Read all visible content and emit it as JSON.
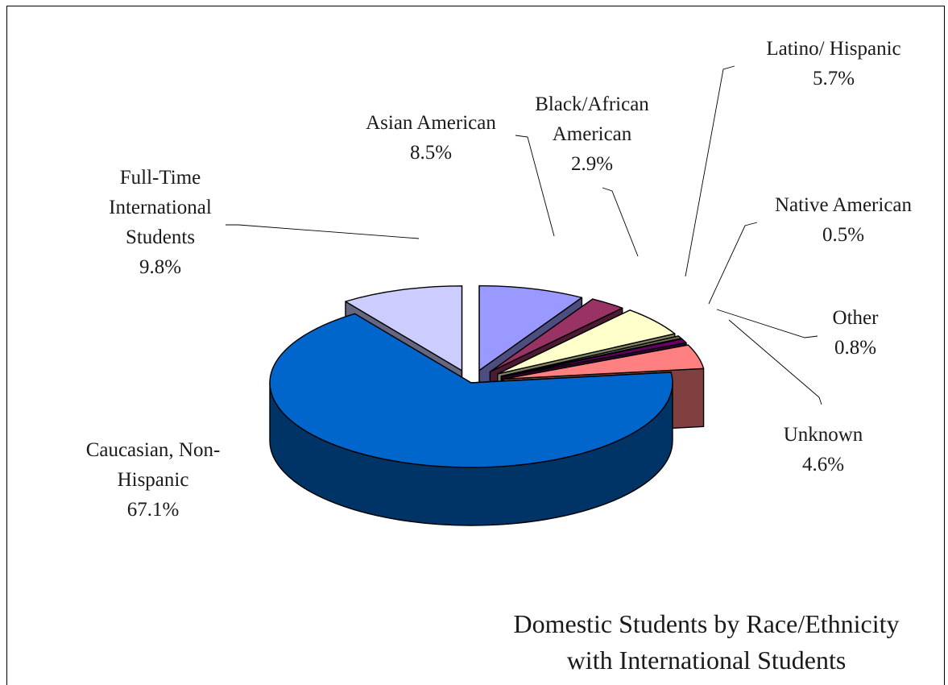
{
  "chart_data": {
    "type": "pie",
    "style": "3d-exploded",
    "title_lines": [
      "Domestic Students by Race/Ethnicity",
      "with International Students"
    ],
    "slices": [
      {
        "label_lines": [
          "Asian American"
        ],
        "value_label": "8.5%",
        "value": 8.5,
        "top_color": "#9999ff",
        "side_color": "#4d4d80"
      },
      {
        "label_lines": [
          "Black/African",
          "American"
        ],
        "value_label": "2.9%",
        "value": 2.9,
        "top_color": "#993366",
        "side_color": "#4d1a33"
      },
      {
        "label_lines": [
          "Latino/ Hispanic"
        ],
        "value_label": "5.7%",
        "value": 5.7,
        "top_color": "#ffffcc",
        "side_color": "#808066"
      },
      {
        "label_lines": [
          "Native American"
        ],
        "value_label": "0.5%",
        "value": 0.5,
        "top_color": "#6b6b4f",
        "side_color": "#3a3a2a"
      },
      {
        "label_lines": [
          "Other"
        ],
        "value_label": "0.8%",
        "value": 0.8,
        "top_color": "#660066",
        "side_color": "#330033"
      },
      {
        "label_lines": [
          "Unknown"
        ],
        "value_label": "4.6%",
        "value": 4.6,
        "top_color": "#ff8080",
        "side_color": "#804040"
      },
      {
        "label_lines": [
          "Caucasian, Non-",
          "Hispanic"
        ],
        "value_label": "67.1%",
        "value": 67.1,
        "top_color": "#0066cc",
        "side_color": "#003366"
      },
      {
        "label_lines": [
          "Full-Time",
          "International",
          "Students"
        ],
        "value_label": "9.8%",
        "value": 9.8,
        "top_color": "#ccccff",
        "side_color": "#666680"
      }
    ]
  }
}
